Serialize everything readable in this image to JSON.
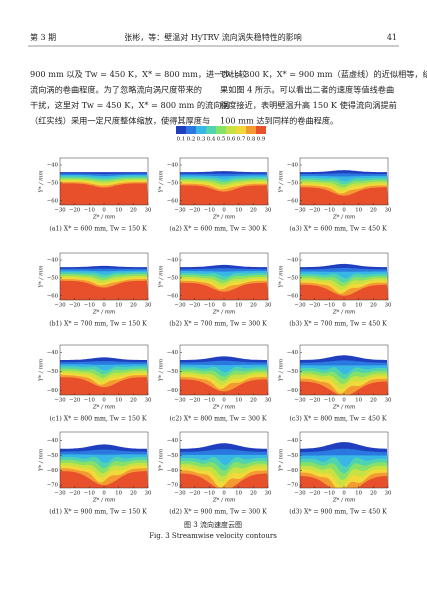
{
  "header": {
    "issue": "第 3 期",
    "running_title": "张彬，等：壁温对 HyTRV 流向涡失稳特性的影响",
    "page": "41"
  },
  "body": {
    "left": [
      "900 mm 以及 Tw = 450 K，X* = 800 mm，进一步比较",
      "流向涡的卷曲程度。为了忽略流向涡尺度带来的",
      "干扰，这里对 Tw = 450 K，X* = 800 mm 的流向涡",
      "（红实线）采用一定尺度整体缩放，使得其厚度与"
    ],
    "right": [
      "Tw = 300 K，X* = 900 mm（蓝虚线）的近似相等，结",
      "果如图 4 所示。可以看出二者的速度等值线卷曲",
      "程度接近，表明壁温升高 150 K 使得流向涡提前",
      "100 mm 达到同样的卷曲程度。"
    ]
  },
  "figure": {
    "colorbar_ticks": [
      0.1,
      0.2,
      0.3,
      0.4,
      0.5,
      0.6,
      0.7,
      0.8,
      0.9
    ],
    "x_ticks": [
      "−30",
      "−20",
      "−10",
      "0",
      "10",
      "20",
      "30"
    ],
    "x_label": "Z* / mm",
    "y_label": "Y* / mm",
    "rows": [
      {
        "y_ticks": [
          "−40",
          "−50",
          "−60"
        ],
        "panels": [
          {
            "caption": "(a1) X* = 600 mm, Tw = 150 K"
          },
          {
            "caption": "(a2) X* = 600 mm, Tw = 300 K"
          },
          {
            "caption": "(a3) X* = 600 mm, Tw = 450 K"
          }
        ]
      },
      {
        "y_ticks": [
          "−40",
          "−50",
          "−60"
        ],
        "panels": [
          {
            "caption": "(b1) X* = 700 mm, Tw = 150 K"
          },
          {
            "caption": "(b2) X* = 700 mm, Tw = 300 K"
          },
          {
            "caption": "(b3) X* = 700 mm, Tw = 450 K"
          }
        ]
      },
      {
        "y_ticks": [
          "−40",
          "−50",
          "−60"
        ],
        "panels": [
          {
            "caption": "(c1) X* = 800 mm, Tw = 150 K"
          },
          {
            "caption": "(c2) X* = 800 mm, Tw = 300 K"
          },
          {
            "caption": "(c3) X* = 800 mm, Tw = 450 K"
          }
        ]
      },
      {
        "y_ticks": [
          "−40",
          "−50",
          "−60",
          "−70"
        ],
        "panels": [
          {
            "caption": "(d1) X* = 900 mm, Tw = 150 K"
          },
          {
            "caption": "(d2) X* = 900 mm, Tw = 300 K"
          },
          {
            "caption": "(d3) X* = 900 mm, Tw = 450 K"
          }
        ]
      }
    ],
    "caption_cn": "图 3  流向速度云图",
    "caption_en": "Fig. 3   Streamwise velocity contours"
  }
}
